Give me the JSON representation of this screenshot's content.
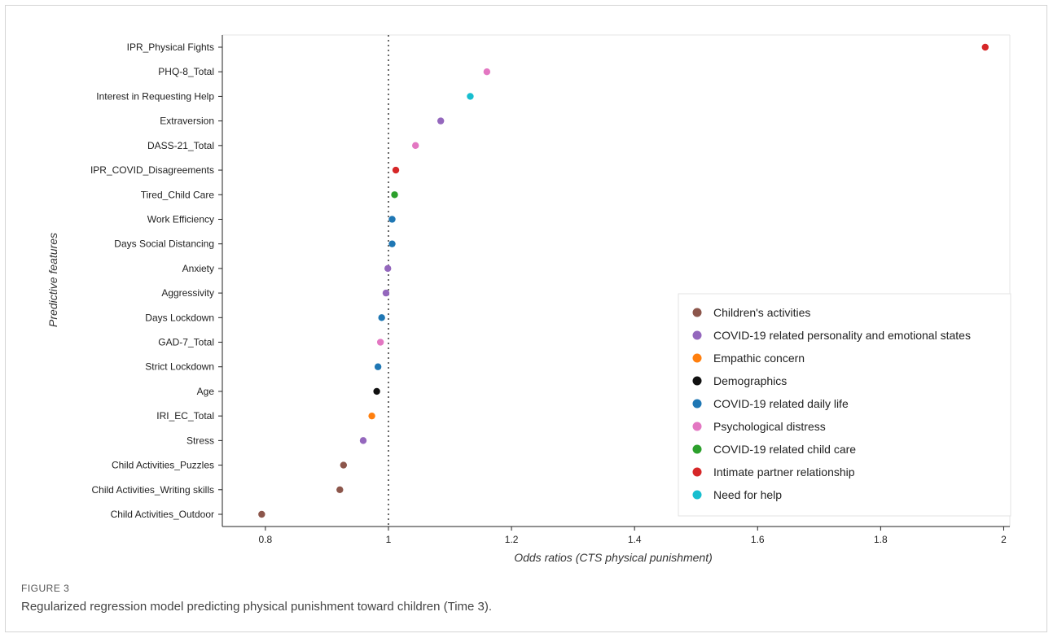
{
  "figure": {
    "label": "FIGURE 3",
    "caption": "Regularized regression model predicting physical punishment toward children (Time 3)."
  },
  "colors": {
    "Children's activities": "#8c564b",
    "COVID-19 related personality and emotional states": "#9467bd",
    "Empathic concern": "#ff7f0e",
    "Demographics": "#111111",
    "COVID-19 related daily life": "#1f77b4",
    "Psychological distress": "#e377c2",
    "COVID-19 related child care": "#2ca02c",
    "Intimate partner relationship": "#d62728",
    "Need for help": "#17becf"
  },
  "chart_data": {
    "type": "scatter",
    "xlabel": "Odds ratios (CTS physical punishment)",
    "ylabel": "Predictive features",
    "xlim": [
      0.73,
      2.01
    ],
    "xticks": [
      0.8,
      1,
      1.2,
      1.4,
      1.6,
      1.8,
      2
    ],
    "xtick_labels": [
      "0.8",
      "1",
      "1.2",
      "1.4",
      "1.6",
      "1.8",
      "2"
    ],
    "reference_line": 1,
    "legend_position": "lower-right",
    "legend": [
      "Children's activities",
      "COVID-19 related personality and emotional states",
      "Empathic concern",
      "Demographics",
      "COVID-19 related daily life",
      "Psychological distress",
      "COVID-19 related child care",
      "Intimate partner relationship",
      "Need for help"
    ],
    "points": [
      {
        "feature": "IPR_Physical Fights",
        "value": 1.97,
        "group": "Intimate partner relationship"
      },
      {
        "feature": "PHQ-8_Total",
        "value": 1.16,
        "group": "Psychological distress"
      },
      {
        "feature": "Interest in Requesting Help",
        "value": 1.133,
        "group": "Need for help"
      },
      {
        "feature": "Extraversion",
        "value": 1.085,
        "group": "COVID-19 related personality and emotional states"
      },
      {
        "feature": "DASS-21_Total",
        "value": 1.044,
        "group": "Psychological distress"
      },
      {
        "feature": "IPR_COVID_Disagreements",
        "value": 1.012,
        "group": "Intimate partner relationship"
      },
      {
        "feature": "Tired_Child Care",
        "value": 1.01,
        "group": "COVID-19 related child care"
      },
      {
        "feature": "Work Efficiency",
        "value": 1.006,
        "group": "COVID-19 related daily life"
      },
      {
        "feature": "Days Social Distancing",
        "value": 1.006,
        "group": "COVID-19 related daily life"
      },
      {
        "feature": "Anxiety",
        "value": 0.999,
        "group": "COVID-19 related personality and emotional states"
      },
      {
        "feature": "Aggressivity",
        "value": 0.996,
        "group": "COVID-19 related personality and emotional states"
      },
      {
        "feature": "Days Lockdown",
        "value": 0.989,
        "group": "COVID-19 related daily life"
      },
      {
        "feature": "GAD-7_Total",
        "value": 0.987,
        "group": "Psychological distress"
      },
      {
        "feature": "Strict Lockdown",
        "value": 0.983,
        "group": "COVID-19 related daily life"
      },
      {
        "feature": "Age",
        "value": 0.981,
        "group": "Demographics"
      },
      {
        "feature": "IRI_EC_Total",
        "value": 0.973,
        "group": "Empathic concern"
      },
      {
        "feature": "Stress",
        "value": 0.959,
        "group": "COVID-19 related personality and emotional states"
      },
      {
        "feature": "Child Activities_Puzzles",
        "value": 0.927,
        "group": "Children's activities"
      },
      {
        "feature": "Child Activities_Writing skills",
        "value": 0.921,
        "group": "Children's activities"
      },
      {
        "feature": "Child Activities_Outdoor",
        "value": 0.794,
        "group": "Children's activities"
      }
    ]
  }
}
